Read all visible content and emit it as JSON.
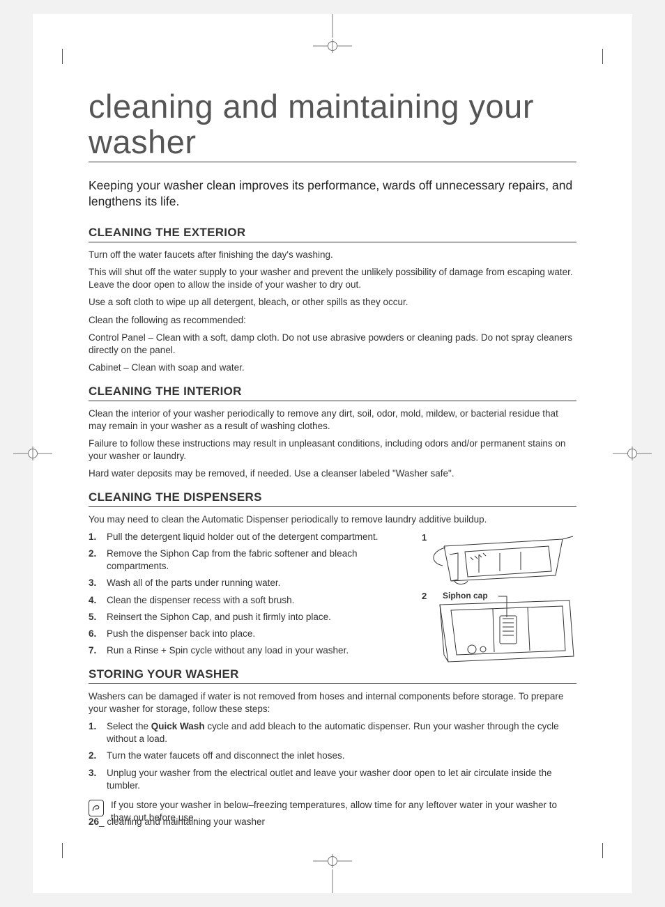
{
  "title": "cleaning and maintaining your washer",
  "intro": "Keeping your washer clean improves its performance, wards off unnecessary repairs, and lengthens its life.",
  "sections": {
    "exterior": {
      "heading": "CLEANING THE EXTERIOR",
      "paras": [
        "Turn off the water faucets after finishing the day's washing.",
        "This will shut off the water supply to your washer and prevent the unlikely possibility of damage from escaping water. Leave the door open to allow the inside of your washer to dry out.",
        "Use a soft cloth to wipe up all detergent, bleach, or other spills as they occur.",
        "Clean the following as recommended:",
        "Control Panel – Clean with a soft, damp cloth. Do not use abrasive powders or cleaning pads. Do not spray cleaners directly on the panel.",
        "Cabinet – Clean with soap and water."
      ]
    },
    "interior": {
      "heading": "CLEANING THE INTERIOR",
      "paras": [
        "Clean the interior of your washer periodically to remove any dirt, soil, odor, mold, mildew, or bacterial residue that may remain in your washer as a result of washing clothes.",
        "Failure to follow these instructions may result in unpleasant conditions, including odors and/or permanent stains on your washer or laundry.",
        "Hard water deposits may be removed, if needed. Use a cleanser labeled \"Washer safe\"."
      ]
    },
    "dispensers": {
      "heading": "CLEANING THE DISPENSERS",
      "intro": "You may need to clean the Automatic Dispenser periodically to remove laundry additive buildup.",
      "steps": [
        "Pull the detergent liquid holder out of the detergent compartment.",
        "Remove the Siphon Cap from the fabric softener and bleach compartments.",
        "Wash all of the parts under running water.",
        "Clean the dispenser recess with a soft brush.",
        "Reinsert the Siphon Cap, and push it firmly into place.",
        "Push the dispenser back into place.",
        "Run a Rinse + Spin cycle without any load in your washer."
      ],
      "diagram": {
        "label1": "1",
        "label2": "2",
        "caption": "Siphon cap",
        "stroke": "#333333"
      }
    },
    "storing": {
      "heading": "STORING YOUR WASHER",
      "intro": "Washers can be damaged if water is not removed from hoses and internal components before storage. To prepare your washer for storage, follow these steps:",
      "steps_html": [
        "Select the <b>Quick Wash</b> cycle and add bleach to the automatic dispenser. Run your washer through the cycle without a load.",
        "Turn the water faucets off and disconnect the inlet hoses.",
        "Unplug your washer from the electrical outlet and leave your washer door open to let air circulate inside the tumbler."
      ],
      "note": "If you store your washer in below–freezing temperatures, allow time for any leftover water in your washer to thaw out before use."
    }
  },
  "footer": {
    "page": "26",
    "sep": "_",
    "label": "cleaning and maintaining your washer"
  },
  "colors": {
    "text": "#333333",
    "rule": "#333333",
    "page_bg": "#ffffff",
    "outer_bg": "#f2f2f2"
  }
}
